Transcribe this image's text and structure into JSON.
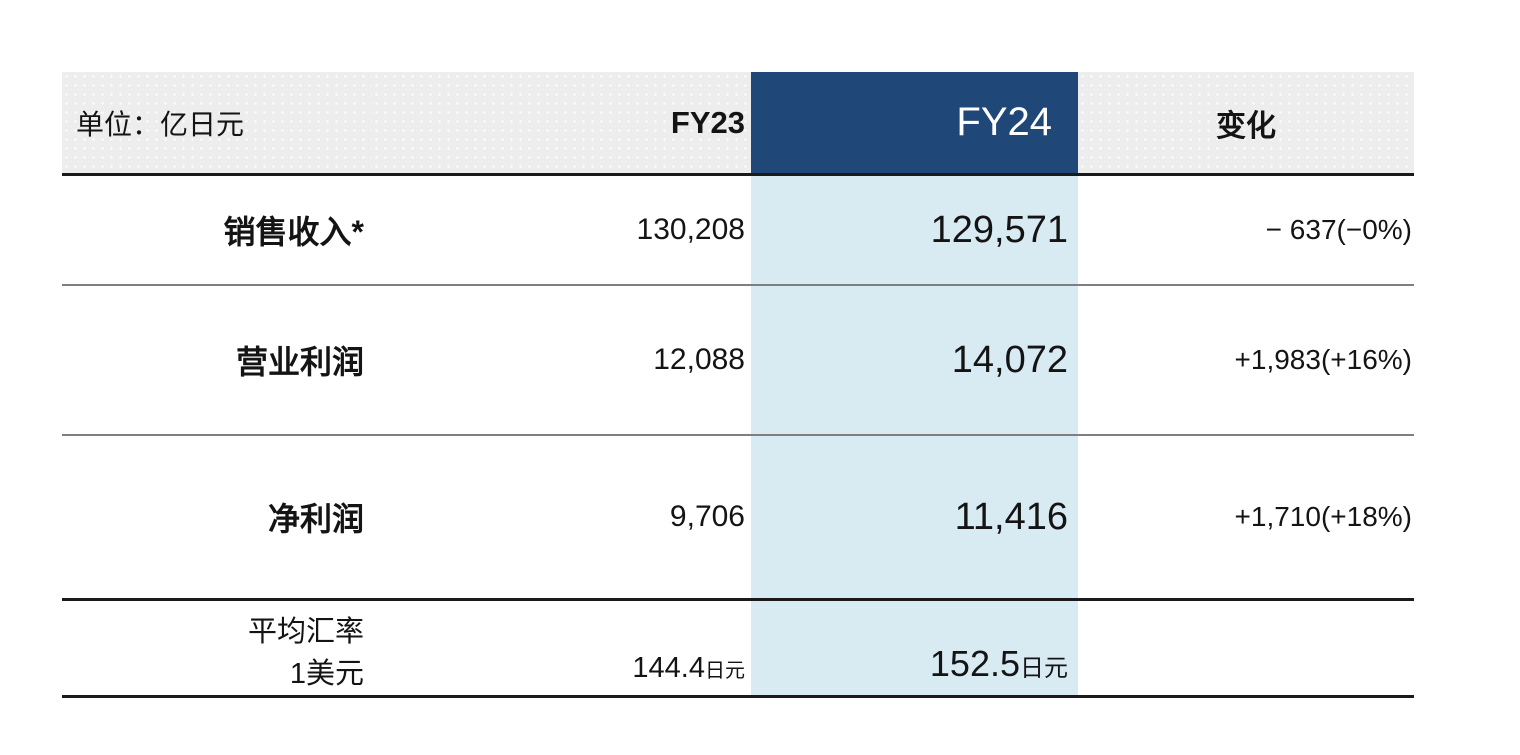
{
  "colors": {
    "page_bg": "#ffffff",
    "header_bg": "#ededed",
    "fy24_header_bg": "#1f4878",
    "fy24_col_bg": "#d8eaf2",
    "line_dark": "#1a1a1a",
    "line_gray": "#7f7f7f",
    "text_color": "#141414"
  },
  "table": {
    "unit_label": "单位：亿日元",
    "columns": {
      "fy23": "FY23",
      "fy24": "FY24",
      "change": "变化"
    },
    "rows": [
      {
        "label": "销售收入*",
        "fy23": "130,208",
        "fy24": "129,571",
        "change": "− 637(−0%)"
      },
      {
        "label": "营业利润",
        "fy23": "12,088",
        "fy24": "14,072",
        "change": "+1,983(+16%)"
      },
      {
        "label": "净利润",
        "fy23": "9,706",
        "fy24": "11,416",
        "change": "+1,710(+18%)"
      }
    ],
    "exchange_rate": {
      "label_line1": "平均汇率",
      "label_line2": "1美元",
      "fy23_value": "144.4",
      "fy23_unit": "日元",
      "fy24_value": "152.5",
      "fy24_unit": "日元"
    }
  },
  "chart_data": {
    "type": "table",
    "title": "",
    "unit": "单位：亿日元",
    "columns": [
      "",
      "FY23",
      "FY24",
      "变化"
    ],
    "rows": [
      [
        "销售收入*",
        "130,208",
        "129,571",
        "− 637(−0%)"
      ],
      [
        "营业利润",
        "12,088",
        "14,072",
        "+1,983(+16%)"
      ],
      [
        "净利润",
        "9,706",
        "11,416",
        "+1,710(+18%)"
      ],
      [
        "平均汇率 1美元",
        "144.4日元",
        "152.5日元",
        ""
      ]
    ],
    "highlighted_column": "FY24",
    "layout": {
      "fy24_column_highlight": true,
      "header_fill": "gray",
      "fy24_header_fill": "dark-blue"
    }
  }
}
